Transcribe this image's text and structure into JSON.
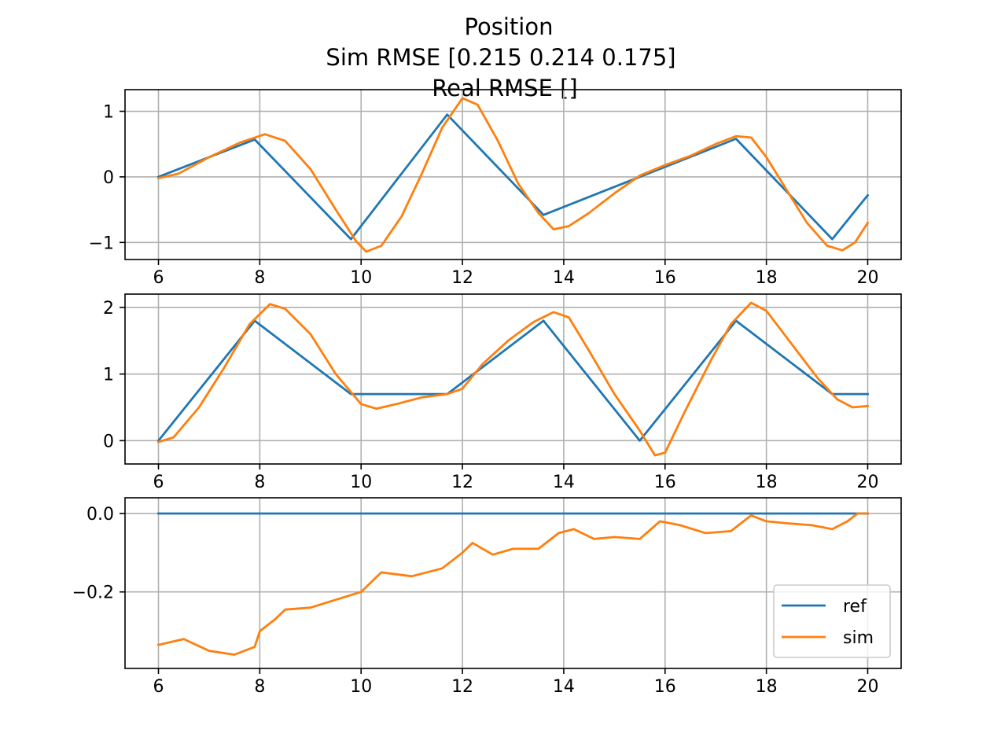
{
  "figure": {
    "title_lines": [
      "Position",
      "Sim RMSE [0.215 0.214 0.175]",
      "Real RMSE []"
    ]
  },
  "colors": {
    "ref": "#1f77b4",
    "sim": "#ff7f0e"
  },
  "chart_data": [
    {
      "type": "line",
      "xlim": [
        5.34,
        20.66
      ],
      "ylim": [
        -1.26,
        1.33
      ],
      "xticks": [
        6,
        8,
        10,
        12,
        14,
        16,
        18,
        20
      ],
      "yticks": [
        -1,
        0,
        1
      ],
      "xtick_labels": [
        "6",
        "8",
        "10",
        "12",
        "14",
        "16",
        "18",
        "20"
      ],
      "ytick_labels": [
        "−1",
        "0",
        "1"
      ],
      "grid": true,
      "series": [
        {
          "name": "ref",
          "x": [
            6,
            7.9,
            9.8,
            11.7,
            13.6,
            15.5,
            17.4,
            19.3,
            20
          ],
          "y": [
            0,
            0.57,
            -0.95,
            0.95,
            -0.58,
            0.0,
            0.58,
            -0.95,
            -0.28
          ]
        },
        {
          "name": "sim",
          "x": [
            6,
            6.4,
            7,
            7.6,
            8.1,
            8.5,
            9.0,
            9.5,
            9.9,
            10.1,
            10.4,
            10.8,
            11.2,
            11.6,
            12.0,
            12.3,
            12.7,
            13.1,
            13.5,
            13.8,
            14.1,
            14.5,
            15.0,
            15.5,
            16.0,
            16.5,
            17.0,
            17.4,
            17.7,
            18.0,
            18.4,
            18.8,
            19.2,
            19.5,
            19.75,
            20
          ],
          "y": [
            -0.02,
            0.05,
            0.3,
            0.52,
            0.65,
            0.55,
            0.12,
            -0.5,
            -0.98,
            -1.14,
            -1.05,
            -0.6,
            0.05,
            0.75,
            1.2,
            1.1,
            0.55,
            -0.1,
            -0.55,
            -0.8,
            -0.75,
            -0.55,
            -0.25,
            0.02,
            0.18,
            0.32,
            0.5,
            0.62,
            0.6,
            0.3,
            -0.2,
            -0.7,
            -1.05,
            -1.12,
            -1.0,
            -0.7
          ]
        }
      ]
    },
    {
      "type": "line",
      "xlim": [
        5.34,
        20.66
      ],
      "ylim": [
        -0.35,
        2.2
      ],
      "xticks": [
        6,
        8,
        10,
        12,
        14,
        16,
        18,
        20
      ],
      "yticks": [
        0,
        1,
        2
      ],
      "xtick_labels": [
        "6",
        "8",
        "10",
        "12",
        "14",
        "16",
        "18",
        "20"
      ],
      "ytick_labels": [
        "0",
        "1",
        "2"
      ],
      "grid": true,
      "series": [
        {
          "name": "ref",
          "x": [
            6,
            7.9,
            9.8,
            11.7,
            13.6,
            15.5,
            17.4,
            19.3,
            20
          ],
          "y": [
            0,
            1.8,
            0.7,
            0.7,
            1.8,
            0.0,
            1.8,
            0.7,
            0.7
          ]
        },
        {
          "name": "sim",
          "x": [
            6,
            6.3,
            6.8,
            7.3,
            7.8,
            8.2,
            8.5,
            9.0,
            9.5,
            10.0,
            10.3,
            10.7,
            11.2,
            11.7,
            12.0,
            12.4,
            12.9,
            13.4,
            13.8,
            14.1,
            14.5,
            15.0,
            15.5,
            15.8,
            16.0,
            16.4,
            16.9,
            17.3,
            17.7,
            18.0,
            18.5,
            19.0,
            19.4,
            19.7,
            20
          ],
          "y": [
            -0.02,
            0.05,
            0.5,
            1.1,
            1.75,
            2.05,
            1.98,
            1.6,
            1.0,
            0.55,
            0.48,
            0.55,
            0.65,
            0.7,
            0.78,
            1.15,
            1.5,
            1.78,
            1.93,
            1.85,
            1.35,
            0.7,
            0.15,
            -0.22,
            -0.18,
            0.45,
            1.2,
            1.75,
            2.07,
            1.95,
            1.45,
            0.95,
            0.62,
            0.5,
            0.52
          ]
        }
      ]
    },
    {
      "type": "line",
      "xlim": [
        5.34,
        20.66
      ],
      "ylim": [
        -0.395,
        0.04
      ],
      "xticks": [
        6,
        8,
        10,
        12,
        14,
        16,
        18,
        20
      ],
      "yticks": [
        0.0,
        -0.2
      ],
      "xtick_labels": [
        "6",
        "8",
        "10",
        "12",
        "14",
        "16",
        "18",
        "20"
      ],
      "ytick_labels": [
        "0.0",
        "−0.2"
      ],
      "grid": true,
      "legend": {
        "location": "lower-right",
        "entries": [
          "ref",
          "sim"
        ]
      },
      "series": [
        {
          "name": "ref",
          "x": [
            6,
            20
          ],
          "y": [
            0,
            0
          ]
        },
        {
          "name": "sim",
          "x": [
            6,
            6.5,
            7.0,
            7.5,
            7.9,
            8.0,
            8.3,
            8.5,
            9.0,
            9.5,
            10.0,
            10.4,
            11.0,
            11.6,
            12.0,
            12.2,
            12.6,
            13.0,
            13.5,
            13.9,
            14.2,
            14.6,
            15.0,
            15.5,
            15.9,
            16.3,
            16.8,
            17.3,
            17.7,
            18.0,
            18.4,
            18.9,
            19.3,
            19.6,
            19.8,
            20
          ],
          "y": [
            -0.335,
            -0.32,
            -0.35,
            -0.36,
            -0.34,
            -0.3,
            -0.27,
            -0.245,
            -0.24,
            -0.22,
            -0.2,
            -0.15,
            -0.16,
            -0.14,
            -0.1,
            -0.075,
            -0.105,
            -0.09,
            -0.09,
            -0.05,
            -0.04,
            -0.065,
            -0.06,
            -0.065,
            -0.02,
            -0.03,
            -0.05,
            -0.045,
            -0.005,
            -0.02,
            -0.025,
            -0.03,
            -0.04,
            -0.02,
            0.0,
            0.0
          ]
        }
      ]
    }
  ]
}
